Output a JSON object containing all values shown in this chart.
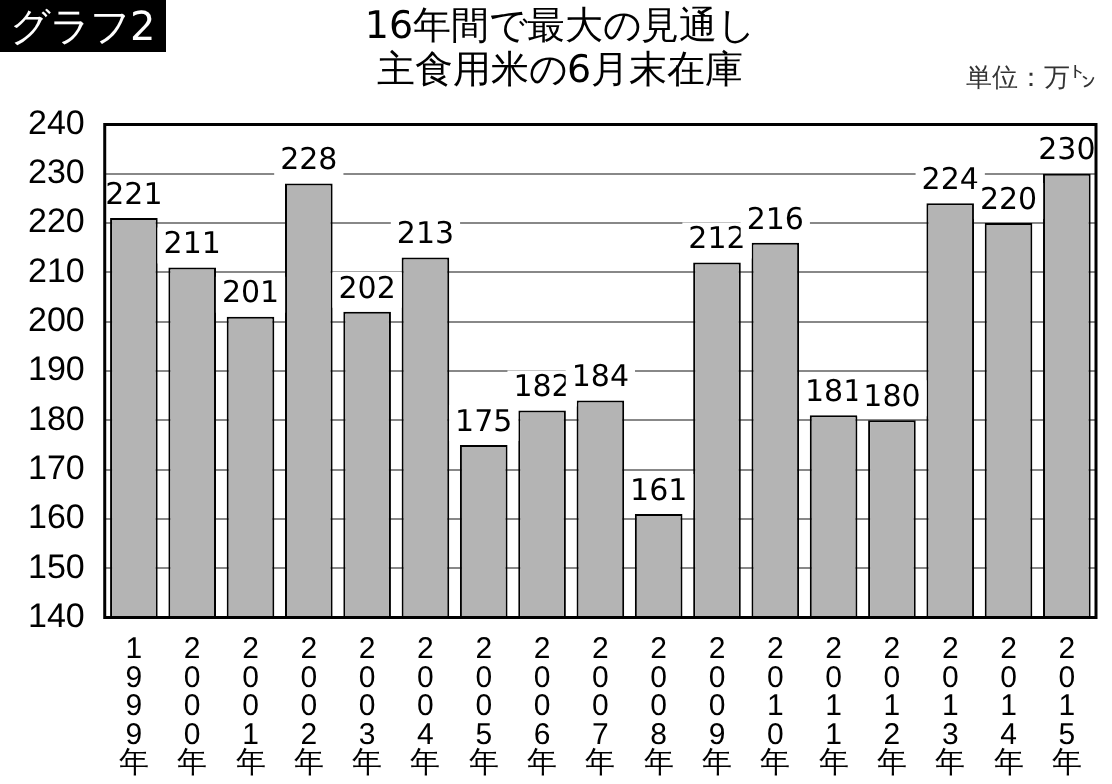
{
  "chart_data": {
    "type": "bar",
    "title": "16年間で最大の見通し",
    "subtitle": "主食用米の6月末在庫",
    "ylabel": "単位：万㌧",
    "annotations": [
      "グラフ2"
    ],
    "categories": [
      "1999年",
      "2000年",
      "2001年",
      "2002年",
      "2003年",
      "2004年",
      "2005年",
      "2006年",
      "2007年",
      "2008年",
      "2009年",
      "2010年",
      "2011年",
      "2012年",
      "2013年",
      "2014年",
      "2015年"
    ],
    "values": [
      221,
      211,
      201,
      228,
      202,
      213,
      175,
      182,
      184,
      161,
      212,
      216,
      181,
      180,
      224,
      220,
      230
    ],
    "color": "#b4b4b4",
    "ylim": [
      140,
      240
    ],
    "yticks": [
      140,
      150,
      160,
      170,
      180,
      190,
      200,
      210,
      220,
      230,
      240
    ],
    "grid": "y",
    "data_labels": true,
    "legend": false
  }
}
